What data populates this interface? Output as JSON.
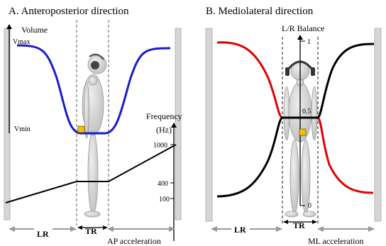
{
  "panel_a": {
    "title": "A. Anteroposterior direction",
    "volume_axis": {
      "label": "Volume",
      "max_label": "Vmax",
      "min_label": "Vmin"
    },
    "frequency_axis": {
      "label_line1": "Frequency",
      "label_line2": "(Hz)",
      "ticks": [
        "1000",
        "400",
        "100"
      ]
    },
    "zone_left_label": "LR",
    "zone_center_label": "TR",
    "x_axis_label": "AP acceleration",
    "colors": {
      "volume_curve": "#1a1ad0",
      "frequency_curve": "#000000",
      "marker": "#f2c200"
    }
  },
  "panel_b": {
    "title": "B. Mediolateral direction",
    "balance_axis": {
      "label": "L/R Balance",
      "ticks": [
        "1",
        "0.5",
        "0"
      ]
    },
    "zone_left_label": "LR",
    "zone_center_label": "TR",
    "x_axis_label": "ML acceleration",
    "colors": {
      "left_curve": "#e00000",
      "right_curve": "#000000",
      "marker": "#f2c200"
    }
  }
}
